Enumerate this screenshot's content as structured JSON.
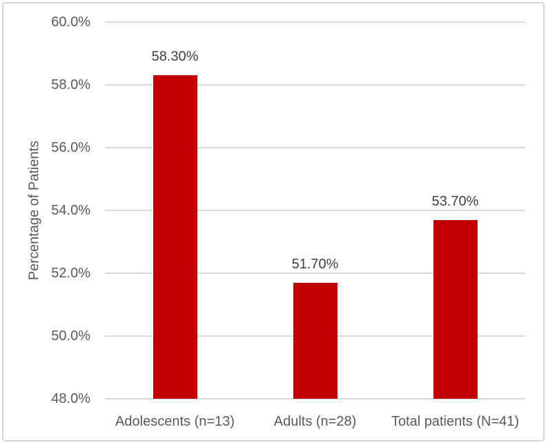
{
  "chart_data": {
    "type": "bar",
    "title": "",
    "xlabel": "",
    "ylabel": "Percentage of Patients",
    "categories": [
      "Adolescents (n=13)",
      "Adults (n=28)",
      "Total patients (N=41)"
    ],
    "values": [
      58.3,
      51.7,
      53.7
    ],
    "data_labels": [
      "58.30%",
      "51.70%",
      "53.70%"
    ],
    "ylim": [
      48,
      60
    ],
    "ytick_values": [
      48,
      50,
      52,
      54,
      56,
      58,
      60
    ],
    "ytick_labels": [
      "48.0%",
      "50.0%",
      "52.0%",
      "54.0%",
      "56.0%",
      "58.0%",
      "60.0%"
    ],
    "grid": true,
    "legend_position": "none",
    "colors": {
      "bar": "#c00000",
      "gridline": "#d9d9d9",
      "axis_text": "#595959",
      "data_label_text": "#404040",
      "frame_border": "#d6d6d6",
      "background": "#ffffff"
    }
  }
}
